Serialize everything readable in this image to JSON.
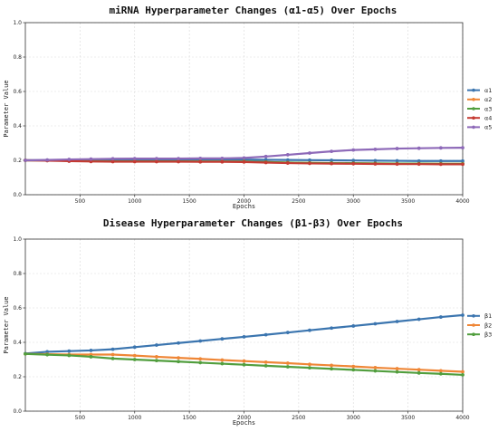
{
  "chart_data": [
    {
      "type": "line",
      "title": "miRNA Hyperparameter Changes (α1-α5) Over Epochs",
      "xlabel": "Epochs",
      "ylabel": "Parameter Value",
      "xlim": [
        0,
        4000
      ],
      "ylim": [
        0,
        1.0
      ],
      "xticks": [
        500,
        1000,
        1500,
        2000,
        2500,
        3000,
        3500,
        4000
      ],
      "yticks": [
        0.0,
        0.2,
        0.4,
        0.6,
        0.8,
        1.0
      ],
      "grid": true,
      "legend_position": "right",
      "x": [
        0,
        200,
        400,
        600,
        800,
        1000,
        1200,
        1400,
        1600,
        1800,
        2000,
        2200,
        2400,
        2600,
        2800,
        3000,
        3200,
        3400,
        3600,
        3800,
        4000
      ],
      "series": [
        {
          "name": "α1",
          "color": "#3b75af",
          "values": [
            0.2,
            0.201,
            0.202,
            0.203,
            0.203,
            0.204,
            0.204,
            0.204,
            0.204,
            0.204,
            0.204,
            0.203,
            0.202,
            0.201,
            0.2,
            0.199,
            0.198,
            0.197,
            0.196,
            0.196,
            0.196
          ]
        },
        {
          "name": "α2",
          "color": "#ef8636",
          "values": [
            0.2,
            0.199,
            0.197,
            0.195,
            0.194,
            0.194,
            0.194,
            0.194,
            0.193,
            0.193,
            0.193,
            0.19,
            0.187,
            0.185,
            0.184,
            0.183,
            0.182,
            0.181,
            0.181,
            0.18,
            0.18
          ]
        },
        {
          "name": "α3",
          "color": "#519e3e",
          "values": [
            0.2,
            0.199,
            0.197,
            0.195,
            0.194,
            0.194,
            0.194,
            0.194,
            0.193,
            0.193,
            0.193,
            0.19,
            0.187,
            0.185,
            0.184,
            0.183,
            0.182,
            0.181,
            0.181,
            0.18,
            0.18
          ]
        },
        {
          "name": "α4",
          "color": "#c53a32",
          "values": [
            0.2,
            0.198,
            0.195,
            0.193,
            0.192,
            0.192,
            0.192,
            0.192,
            0.191,
            0.191,
            0.19,
            0.187,
            0.184,
            0.182,
            0.181,
            0.18,
            0.179,
            0.178,
            0.178,
            0.177,
            0.177
          ]
        },
        {
          "name": "α5",
          "color": "#8d69b8",
          "values": [
            0.2,
            0.202,
            0.205,
            0.207,
            0.209,
            0.21,
            0.21,
            0.21,
            0.211,
            0.211,
            0.214,
            0.222,
            0.232,
            0.242,
            0.252,
            0.26,
            0.264,
            0.268,
            0.27,
            0.272,
            0.273
          ]
        }
      ]
    },
    {
      "type": "line",
      "title": "Disease Hyperparameter Changes (β1-β3) Over Epochs",
      "xlabel": "Epochs",
      "ylabel": "Parameter Value",
      "xlim": [
        0,
        4000
      ],
      "ylim": [
        0,
        1.0
      ],
      "xticks": [
        500,
        1000,
        1500,
        2000,
        2500,
        3000,
        3500,
        4000
      ],
      "yticks": [
        0.0,
        0.2,
        0.4,
        0.6,
        0.8,
        1.0
      ],
      "grid": true,
      "legend_position": "right",
      "x": [
        0,
        200,
        400,
        600,
        800,
        1000,
        1200,
        1400,
        1600,
        1800,
        2000,
        2200,
        2400,
        2600,
        2800,
        3000,
        3200,
        3400,
        3600,
        3800,
        4000
      ],
      "series": [
        {
          "name": "β1",
          "color": "#3b75af",
          "values": [
            0.335,
            0.345,
            0.349,
            0.353,
            0.36,
            0.372,
            0.384,
            0.396,
            0.408,
            0.42,
            0.432,
            0.444,
            0.457,
            0.47,
            0.483,
            0.495,
            0.508,
            0.521,
            0.534,
            0.547,
            0.558
          ]
        },
        {
          "name": "β2",
          "color": "#ef8636",
          "values": [
            0.333,
            0.331,
            0.329,
            0.329,
            0.329,
            0.323,
            0.316,
            0.31,
            0.304,
            0.297,
            0.291,
            0.285,
            0.279,
            0.272,
            0.266,
            0.26,
            0.253,
            0.247,
            0.241,
            0.235,
            0.229
          ]
        },
        {
          "name": "β3",
          "color": "#519e3e",
          "values": [
            0.333,
            0.328,
            0.324,
            0.316,
            0.306,
            0.3,
            0.294,
            0.288,
            0.282,
            0.276,
            0.27,
            0.264,
            0.258,
            0.252,
            0.246,
            0.24,
            0.234,
            0.228,
            0.222,
            0.217,
            0.211
          ]
        }
      ]
    }
  ]
}
